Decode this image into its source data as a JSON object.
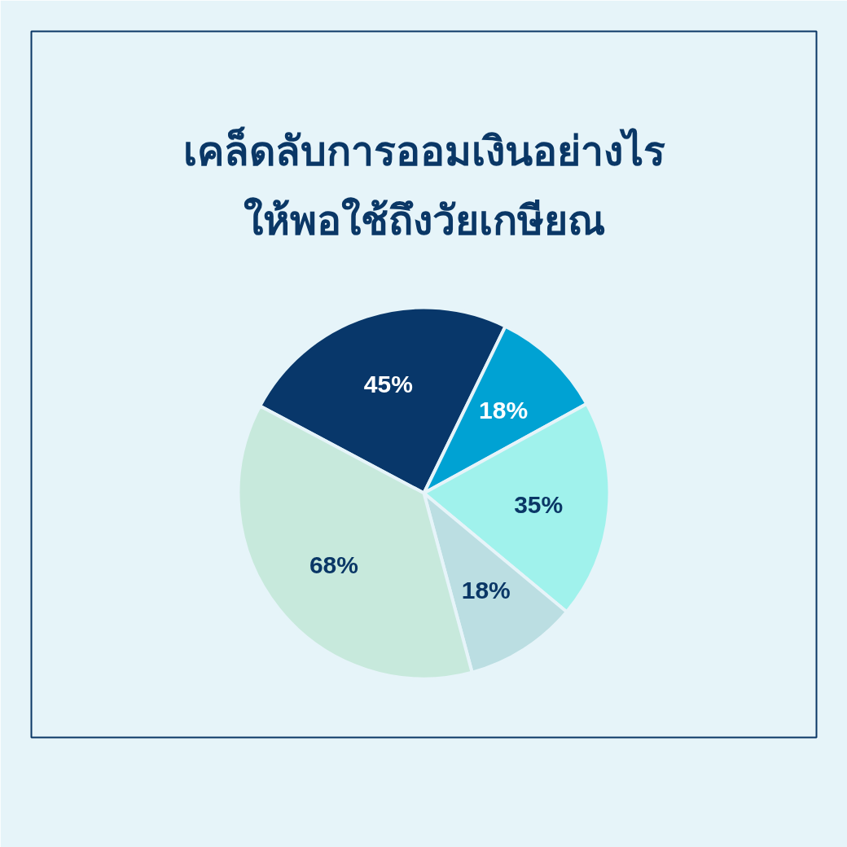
{
  "chart_data": {
    "type": "pie",
    "title": "เคล็ดลับการออมเงินอย่างไร\nให้พอใช้ถึงวัยเกษียณ",
    "categories": [
      null,
      null,
      null,
      null,
      null
    ],
    "values": [
      45,
      18,
      35,
      18,
      68
    ],
    "value_labels": [
      "45%",
      "18%",
      "35%",
      "18%",
      "68%"
    ],
    "colors": [
      "#08376a",
      "#00a2d3",
      "#a0f2ec",
      "#bbdee2",
      "#c7e9dc"
    ]
  }
}
